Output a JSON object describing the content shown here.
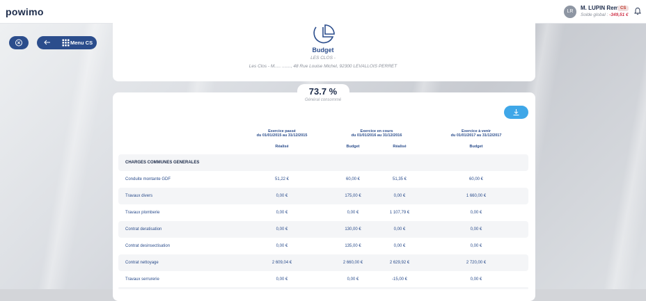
{
  "app": {
    "logo": "powimo"
  },
  "user": {
    "initials": "LR",
    "name": "M. LUPIN Remi",
    "badge": "CS",
    "solde_label": "Solde global : ",
    "solde_value": "-349,51 €"
  },
  "nav": {
    "menu_label": "Menu CS"
  },
  "budget": {
    "title": "Budget",
    "residence": "LES CLOS -",
    "address": "Les Clos - M..... ......., 48 Rue Louise Michel, 92300 LEVALLOIS PERRET",
    "percent": "73.7 %",
    "percent_label": "Général consommé"
  },
  "table": {
    "groups": [
      {
        "title": "Exercice passé",
        "period": "du 01/01/2015 au 31/12/2015"
      },
      {
        "title": "Exercice en cours",
        "period": "du 01/01/2016 au 31/12/2016"
      },
      {
        "title": "Exercice à venir",
        "period": "du 01/01/2017 au 31/12/2017"
      }
    ],
    "subheaders": [
      "Réalisé",
      "Budget",
      "Réalisé",
      "Budget"
    ],
    "section": "CHARGES COMMUNES GENERALES",
    "rows": [
      {
        "label": "Conduite montante GDF",
        "values": [
          "51,22 €",
          "60,00 €",
          "51,35 €",
          "60,00 €"
        ]
      },
      {
        "label": "Travaux divers",
        "values": [
          "0,00 €",
          "175,00 €",
          "0,00 €",
          "1 660,00 €"
        ]
      },
      {
        "label": "Travaux plomberie",
        "values": [
          "0,00 €",
          "0,00 €",
          "1 107,79 €",
          "0,00 €"
        ]
      },
      {
        "label": "Contrat deratisation",
        "values": [
          "0,00 €",
          "130,00 €",
          "0,00 €",
          "0,00 €"
        ]
      },
      {
        "label": "Contrat desinsectisation",
        "values": [
          "0,00 €",
          "135,00 €",
          "0,00 €",
          "0,00 €"
        ]
      },
      {
        "label": "Contrat nettoyage",
        "values": [
          "2 609,04 €",
          "2 660,00 €",
          "2 629,92 €",
          "2 720,00 €"
        ]
      },
      {
        "label": "Travaux serrurerie",
        "values": [
          "0,00 €",
          "0,00 €",
          "-15,00 €",
          "0,00 €"
        ]
      }
    ]
  },
  "icons": {
    "close": "close-circle-icon",
    "back": "arrow-left-icon",
    "menu": "grid-menu-icon",
    "bell": "bell-icon",
    "budget": "pie-chart-icon",
    "download": "download-icon"
  },
  "colors": {
    "primary": "#2b4d8c",
    "accent": "#3fa7e8",
    "negative": "#d0344a"
  }
}
